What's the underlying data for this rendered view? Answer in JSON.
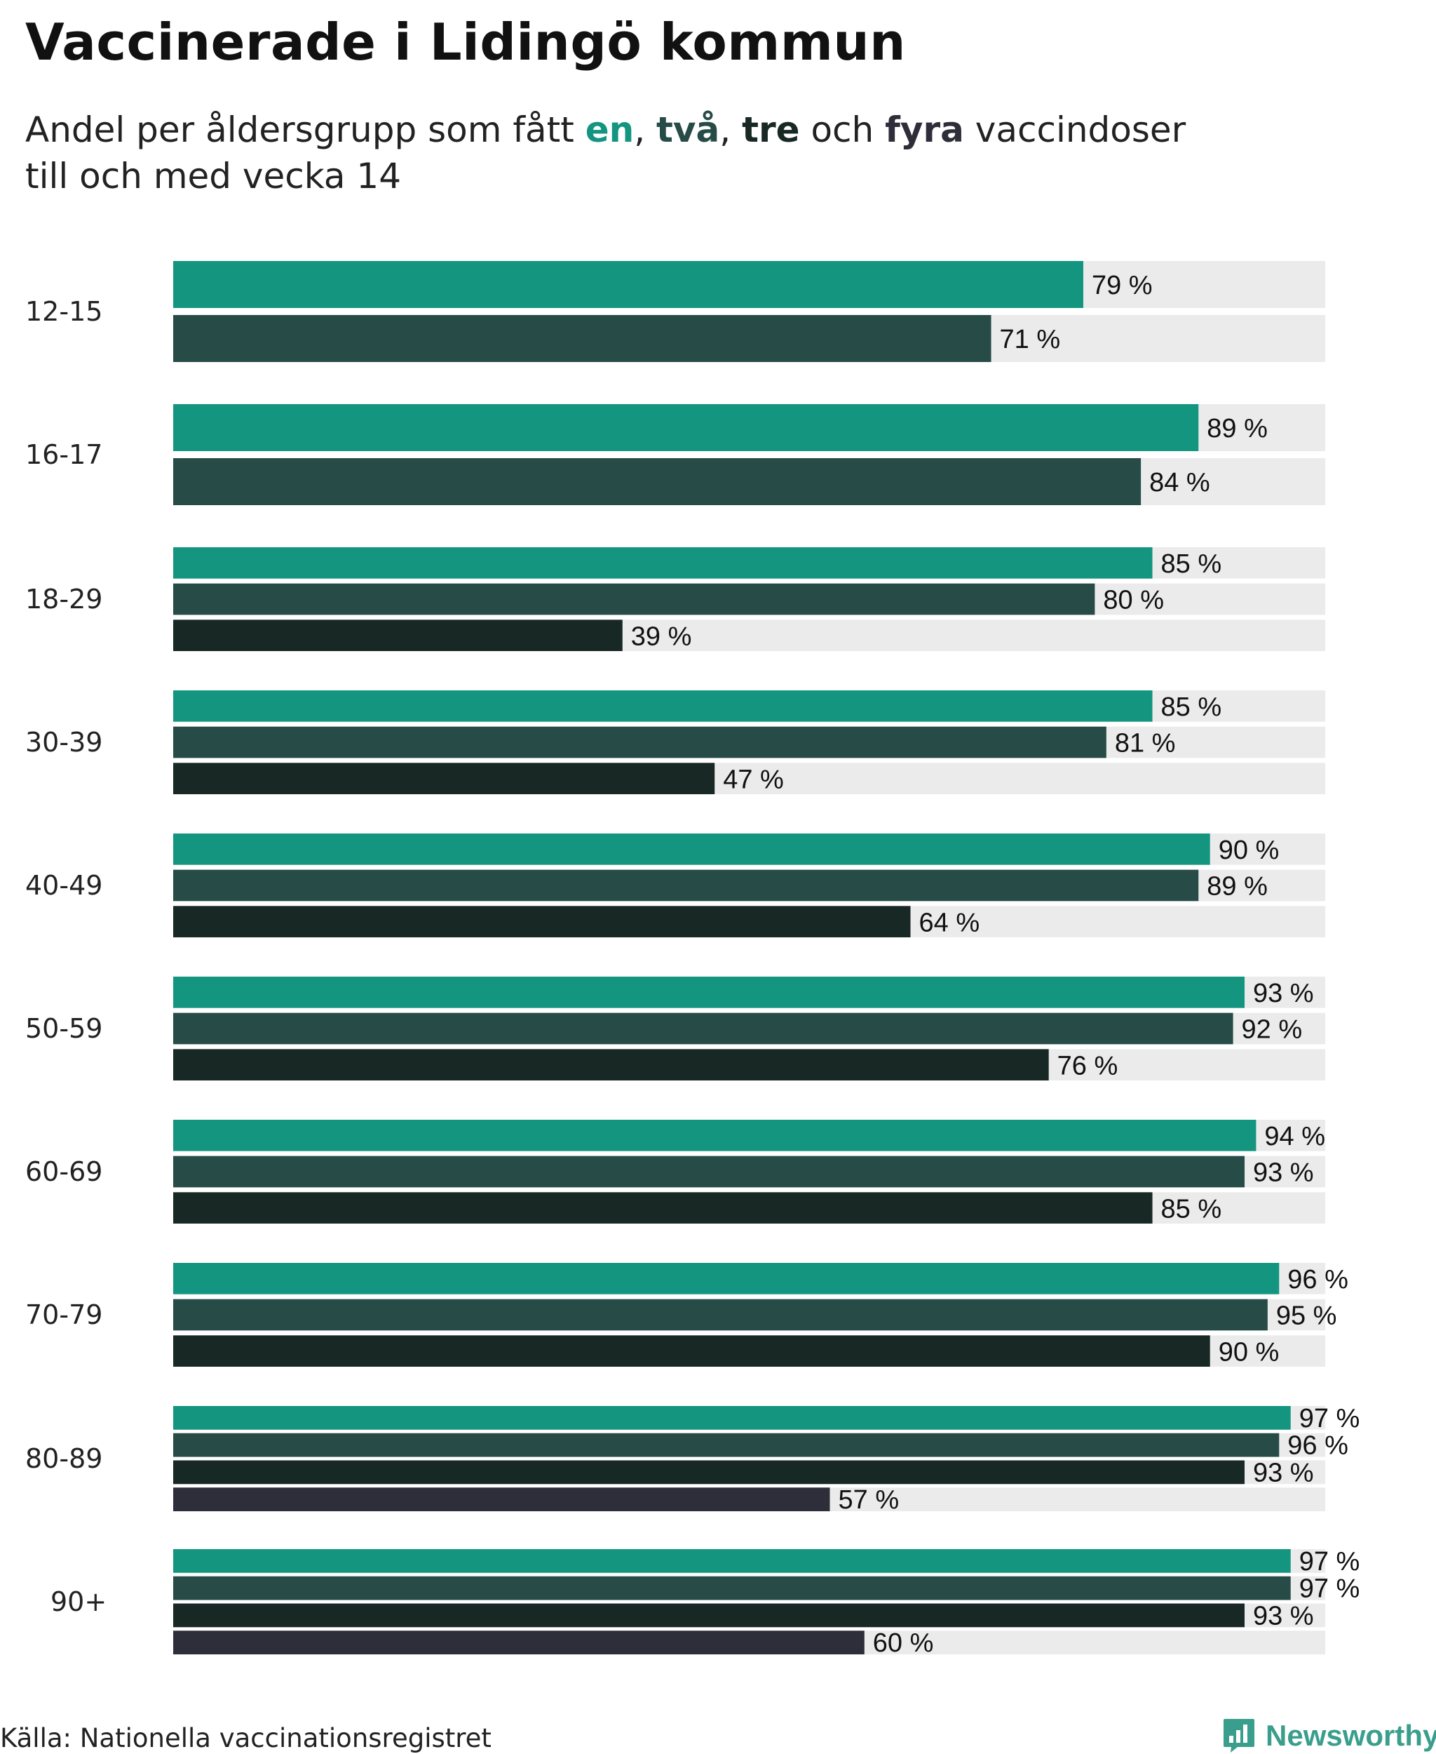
{
  "title": "Vaccinerade i Lidingö kommun",
  "subtitle": {
    "prefix": "Andel per åldersgrupp som fått ",
    "k1": "en",
    "sep1": ", ",
    "k2": "två",
    "sep2": ", ",
    "k3": "tre",
    "sep3": " och ",
    "k4": "fyra",
    "suffix": " vaccindoser",
    "line2": "till och med vecka 14"
  },
  "colors": {
    "dose1": "#13957f",
    "dose2": "#274b47",
    "dose3": "#182825",
    "dose4": "#2e2d3a",
    "track": "#ebebeb"
  },
  "chart_data": {
    "type": "bar",
    "orientation": "horizontal",
    "title": "Vaccinerade i Lidingö kommun",
    "xlim": [
      0,
      100
    ],
    "value_suffix": " %",
    "categories": [
      "12-15",
      "16-17",
      "18-29",
      "30-39",
      "40-49",
      "50-59",
      "60-69",
      "70-79",
      "80-89",
      "90+"
    ],
    "series": [
      {
        "name": "en",
        "values": [
          79,
          89,
          85,
          85,
          90,
          93,
          94,
          96,
          97,
          97
        ]
      },
      {
        "name": "två",
        "values": [
          71,
          84,
          80,
          81,
          89,
          92,
          93,
          95,
          96,
          97
        ]
      },
      {
        "name": "tre",
        "values": [
          null,
          null,
          39,
          47,
          64,
          76,
          85,
          90,
          93,
          93
        ]
      },
      {
        "name": "fyra",
        "values": [
          null,
          null,
          null,
          null,
          null,
          null,
          null,
          null,
          57,
          60
        ]
      }
    ]
  },
  "source": "Källa: Nationella vaccinationsregistret",
  "brand": "Newsworthy"
}
